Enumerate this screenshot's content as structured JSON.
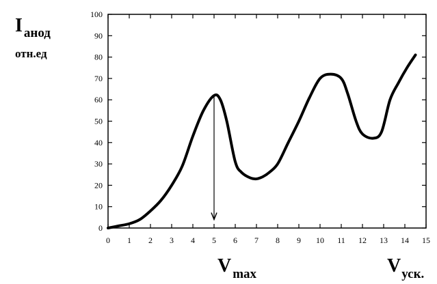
{
  "chart_data": {
    "type": "line",
    "title": "",
    "ylabel_main": "I",
    "ylabel_sub": "анод",
    "ylabel_units": "отн.ед",
    "xlabel_main": "V",
    "xlabel_sub": "уск.",
    "annotation_main": "V",
    "annotation_sub": "max",
    "xlim": [
      0,
      15
    ],
    "ylim": [
      0,
      100
    ],
    "x_ticks": [
      "0",
      "1",
      "2",
      "3",
      "4",
      "5",
      "6",
      "7",
      "8",
      "9",
      "10",
      "11",
      "12",
      "13",
      "14",
      "15"
    ],
    "y_ticks": [
      "0",
      "10",
      "20",
      "30",
      "40",
      "50",
      "60",
      "70",
      "80",
      "90",
      "100"
    ],
    "grid": false,
    "series": [
      {
        "x": [
          0,
          0.5,
          1,
          1.5,
          2,
          2.5,
          3,
          3.5,
          4,
          4.5,
          5,
          5.3,
          5.6,
          6,
          6.3,
          6.7,
          7.0,
          7.3,
          7.6,
          8,
          8.5,
          9,
          9.5,
          10,
          10.5,
          11,
          11.3,
          11.7,
          12,
          12.5,
          12.9,
          13.3,
          13.7,
          14.1,
          14.5
        ],
        "y": [
          0,
          1,
          2,
          4,
          8,
          13,
          20,
          29,
          43,
          55,
          62,
          60,
          50,
          31,
          26,
          23.5,
          23,
          24,
          26,
          30,
          40,
          50,
          61,
          70,
          72,
          70,
          63,
          50,
          44,
          42,
          45,
          60,
          68,
          75,
          81
        ]
      }
    ],
    "vmax_arrow": {
      "x": 5,
      "y_top": 62,
      "y_bottom": 4
    }
  }
}
